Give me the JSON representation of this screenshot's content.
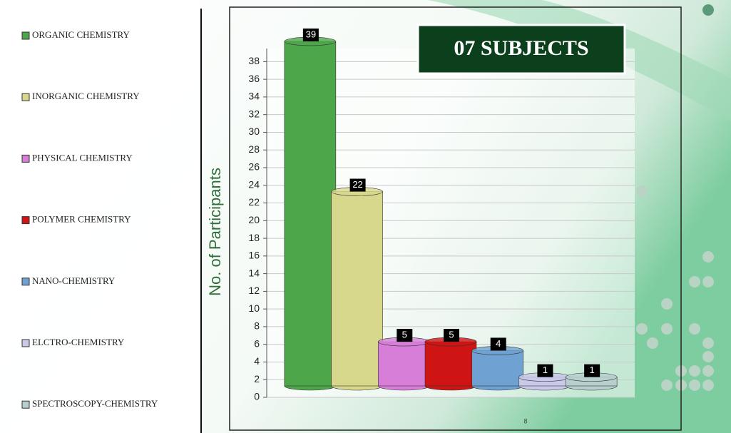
{
  "chart_data": {
    "type": "bar",
    "title": "07 SUBJECTS",
    "y_label": "No. of Participants",
    "categories": [
      "ORGANIC CHEMISTRY",
      "INORGANIC CHEMISTRY",
      "PHYSICAL CHEMISTRY",
      "POLYMER CHEMISTRY",
      "NANO-CHEMISTRY",
      "ELCTRO-CHEMISTRY",
      "SPECTROSCOPY-CHEMISTRY"
    ],
    "values": [
      39,
      22,
      5,
      5,
      4,
      1,
      1
    ],
    "colors": [
      "#4da64a",
      "#d8d88c",
      "#d77fd8",
      "#cf1414",
      "#6fa2d2",
      "#c9c9ea",
      "#b7cfcf"
    ],
    "ylim": [
      0,
      40
    ],
    "yticks": [
      0,
      2,
      4,
      6,
      8,
      10,
      12,
      14,
      16,
      18,
      20,
      22,
      24,
      26,
      28,
      30,
      32,
      34,
      36,
      38
    ],
    "grid": true
  },
  "page_number": "8"
}
